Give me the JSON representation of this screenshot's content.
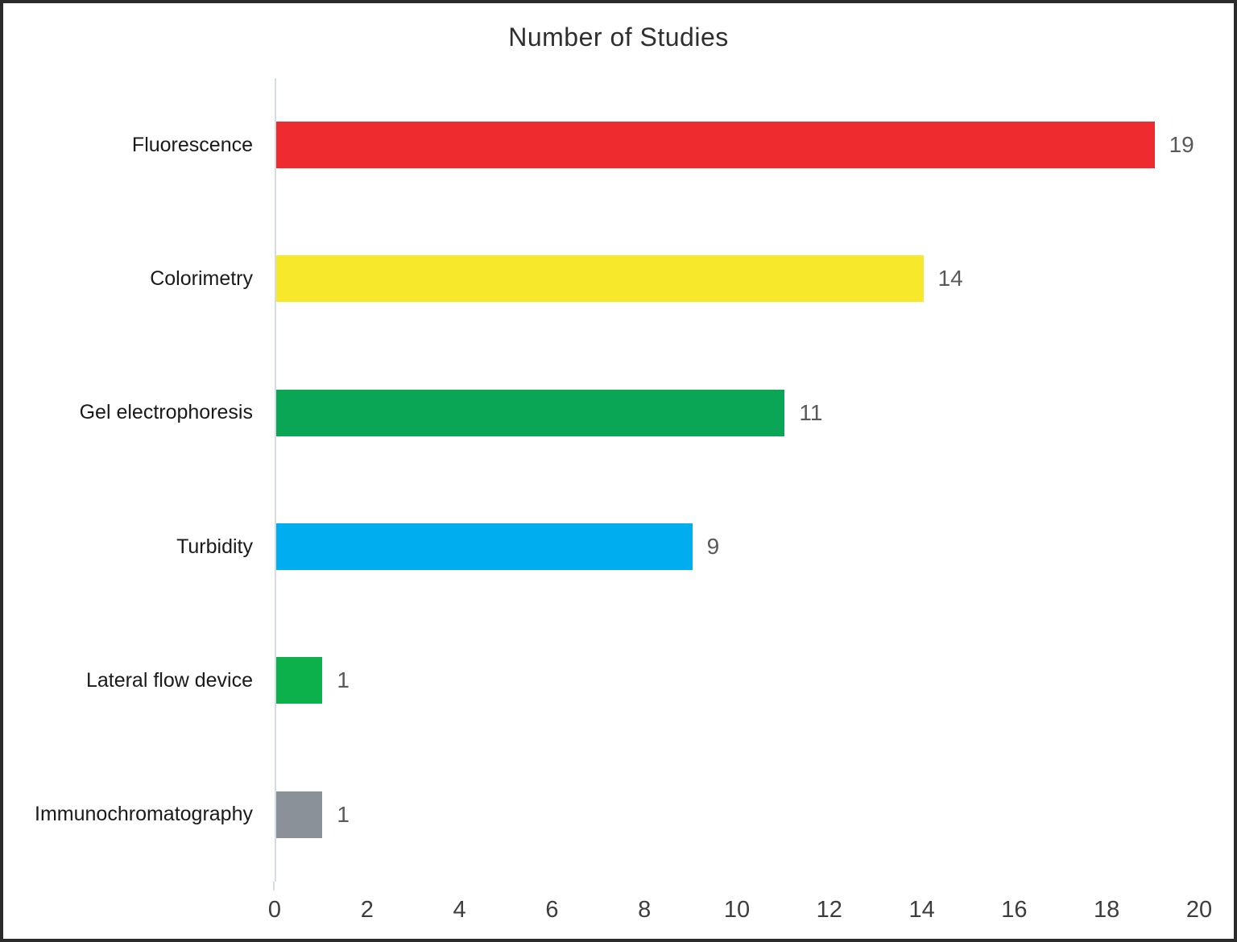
{
  "chart_data": {
    "type": "bar",
    "orientation": "horizontal",
    "title": "Number of Studies",
    "categories": [
      "Fluorescence",
      "Colorimetry",
      "Gel electrophoresis",
      "Turbidity",
      "Lateral flow device",
      "Immunochromatography"
    ],
    "values": [
      19,
      14,
      11,
      9,
      1,
      1
    ],
    "bar_colors": [
      "#ee2b2e",
      "#f8e82b",
      "#0aa555",
      "#00aeef",
      "#0db14b",
      "#8a9198"
    ],
    "data_labels": [
      19,
      14,
      11,
      9,
      1,
      1
    ],
    "xlabel": "",
    "ylabel": "",
    "xlim": [
      0,
      20
    ],
    "x_ticks": [
      0,
      2,
      4,
      6,
      8,
      10,
      12,
      14,
      16,
      18,
      20
    ],
    "grid": false,
    "legend": false,
    "axis_line_color": "#d6dce3",
    "value_label_color": "#595959",
    "category_label_color": "#1a1a1a"
  }
}
